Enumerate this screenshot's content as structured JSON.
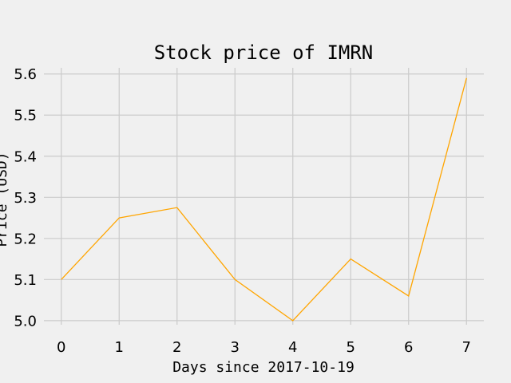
{
  "chart_data": {
    "type": "line",
    "title": "Stock price of IMRN",
    "xlabel": "Days since 2017-10-19",
    "ylabel": "Price (USD)",
    "x": [
      0,
      1,
      2,
      3,
      4,
      5,
      6,
      7
    ],
    "series": [
      {
        "values": [
          5.1,
          5.25,
          5.275,
          5.1,
          5.0,
          5.15,
          5.06,
          5.59
        ],
        "color": "#ffa500"
      }
    ],
    "xlim": [
      -0.3,
      7.3
    ],
    "ylim": [
      4.99,
      5.615
    ],
    "xticks": [
      0,
      1,
      2,
      3,
      4,
      5,
      6,
      7
    ],
    "yticks": [
      5.0,
      5.1,
      5.2,
      5.3,
      5.4,
      5.5,
      5.6
    ],
    "xtick_labels": [
      "0",
      "1",
      "2",
      "3",
      "4",
      "5",
      "6",
      "7"
    ],
    "ytick_labels": [
      "5.0",
      "5.1",
      "5.2",
      "5.3",
      "5.4",
      "5.5",
      "5.6"
    ],
    "grid": true,
    "background": "#f0f0f0",
    "grid_color": "#cbcbcb"
  }
}
